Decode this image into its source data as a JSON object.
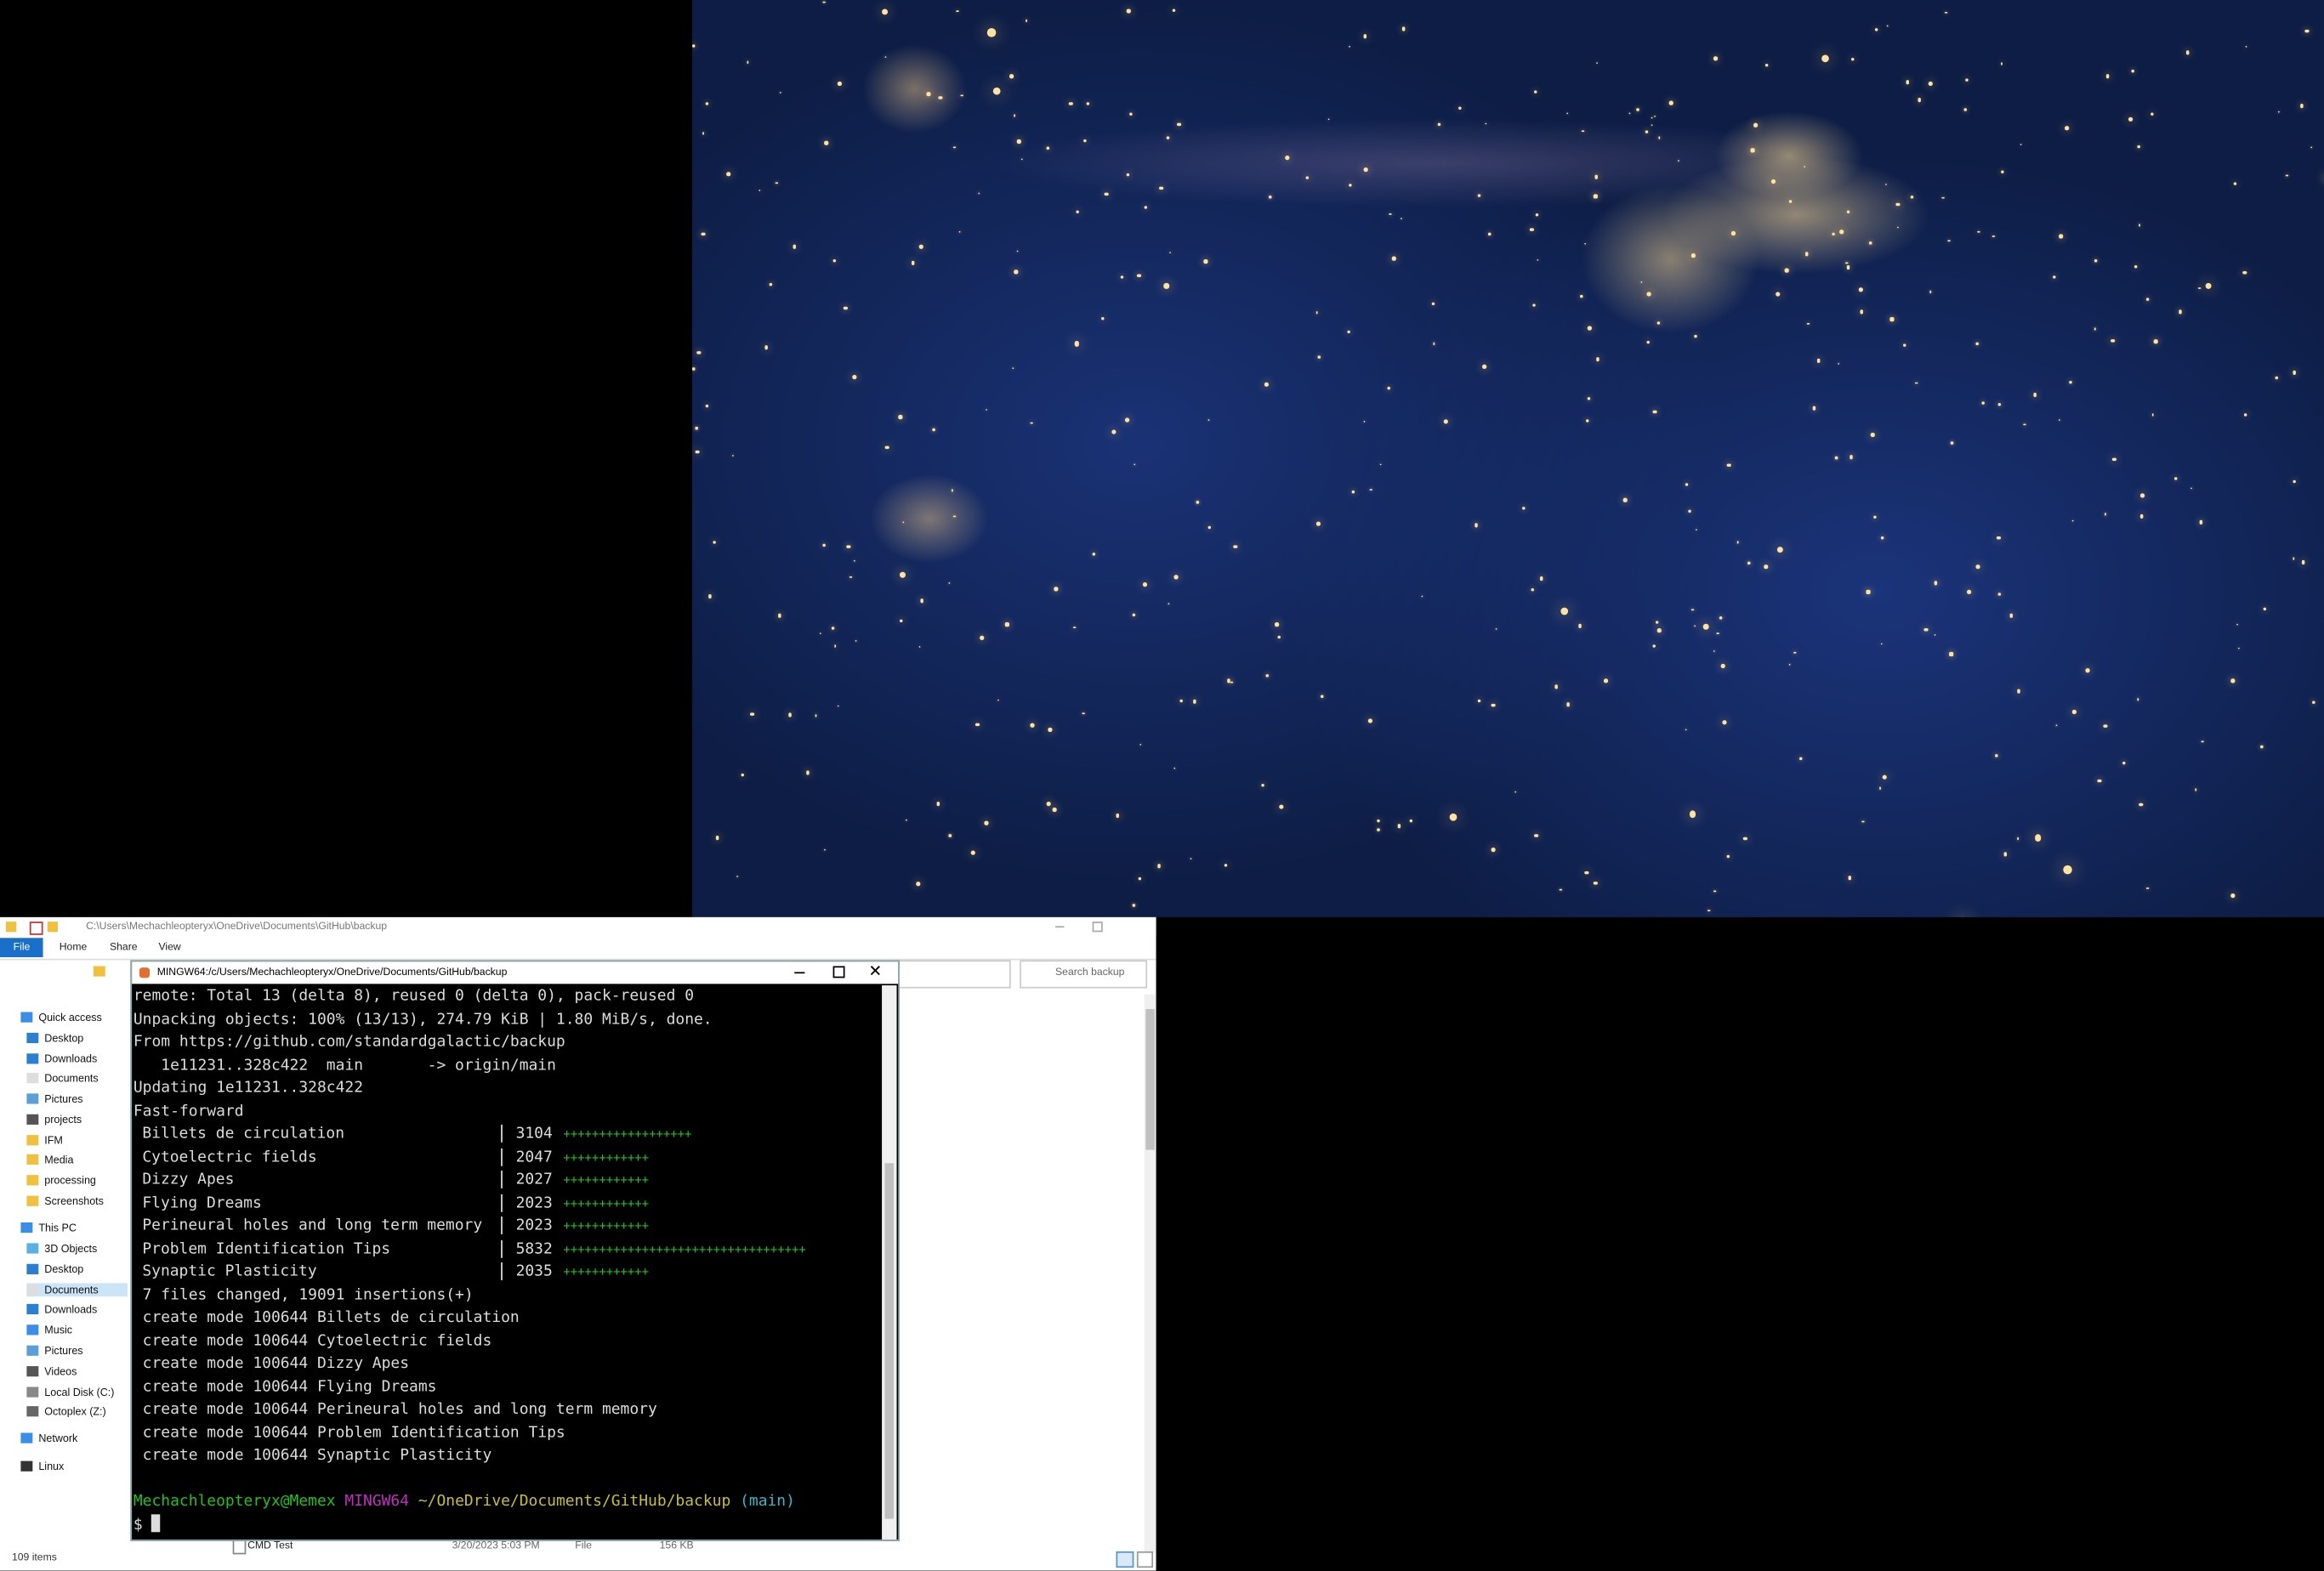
{
  "explorer": {
    "path": "C:\\Users\\Mechachleopteryx\\OneDrive\\Documents\\GitHub\\backup",
    "tabs": [
      "File",
      "Home",
      "Share",
      "View"
    ],
    "search_placeholder": "Search backup",
    "sidebar": [
      "Quick access",
      "Desktop",
      "Downloads",
      "Documents",
      "Pictures",
      "projects",
      "IFM",
      "Media",
      "processing",
      "Screenshots",
      "This PC",
      "3D Objects",
      "Desktop",
      "Documents",
      "Downloads",
      "Music",
      "Pictures",
      "Videos",
      "Local Disk (C:)",
      "Octoplex (Z:)",
      "Network",
      "Linux"
    ],
    "file_row": {
      "name": "CMD Test",
      "date": "3/20/2023 5:03 PM",
      "type": "File",
      "size": "156 KB"
    },
    "status": "109 items"
  },
  "terminal": {
    "title": "MINGW64:/c/Users/Mechachleopteryx/OneDrive/Documents/GitHub/backup",
    "lines": [
      "remote: Total 13 (delta 8), reused 0 (delta 0), pack-reused 0",
      "Unpacking objects: 100% (13/13), 274.79 KiB | 1.80 MiB/s, done.",
      "From https://github.com/standardgalactic/backup",
      "   1e11231..328c422  main       -> origin/main",
      "Updating 1e11231..328c422",
      "Fast-forward"
    ],
    "diffstat": [
      {
        "file": "Billets de circulation",
        "count": "3104",
        "bar": "++++++++++++++++++"
      },
      {
        "file": "Cytoelectric fields",
        "count": "2047",
        "bar": "++++++++++++"
      },
      {
        "file": "Dizzy Apes",
        "count": "2027",
        "bar": "++++++++++++"
      },
      {
        "file": "Flying Dreams",
        "count": "2023",
        "bar": "++++++++++++"
      },
      {
        "file": "Perineural holes and long term memory",
        "count": "2023",
        "bar": "++++++++++++"
      },
      {
        "file": "Problem Identification Tips",
        "count": "5832",
        "bar": "++++++++++++++++++++++++++++++++++"
      },
      {
        "file": "Synaptic Plasticity",
        "count": "2035",
        "bar": "++++++++++++"
      }
    ],
    "summary": " 7 files changed, 19091 insertions(+)",
    "create_lines": [
      " create mode 100644 Billets de circulation",
      " create mode 100644 Cytoelectric fields",
      " create mode 100644 Dizzy Apes",
      " create mode 100644 Flying Dreams",
      " create mode 100644 Perineural holes and long term memory",
      " create mode 100644 Problem Identification Tips",
      " create mode 100644 Synaptic Plasticity"
    ],
    "prompt": {
      "user": "Mechachleopteryx@Memex",
      "system": "MINGW64",
      "cwd": "~/OneDrive/Documents/GitHub/backup",
      "branch": "(main)",
      "symbol": "$"
    }
  }
}
